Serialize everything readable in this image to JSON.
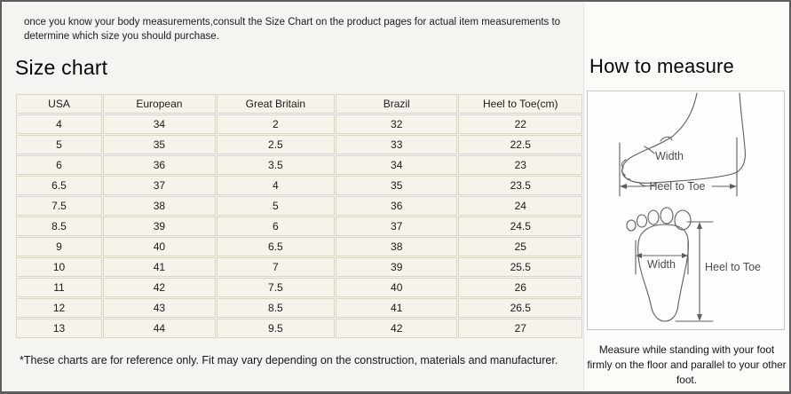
{
  "intro_text": "once you know your body measurements,consult the Size Chart on the product pages for actual item measurements to determine which size you should purchase.",
  "size_chart": {
    "title": "Size chart",
    "table": {
      "headers": [
        "USA",
        "European",
        "Great Britain",
        "Brazil",
        "Heel to Toe(cm)"
      ],
      "rows": [
        [
          "4",
          "34",
          "2",
          "32",
          "22"
        ],
        [
          "5",
          "35",
          "2.5",
          "33",
          "22.5"
        ],
        [
          "6",
          "36",
          "3.5",
          "34",
          "23"
        ],
        [
          "6.5",
          "37",
          "4",
          "35",
          "23.5"
        ],
        [
          "7.5",
          "38",
          "5",
          "36",
          "24"
        ],
        [
          "8.5",
          "39",
          "6",
          "37",
          "24.5"
        ],
        [
          "9",
          "40",
          "6.5",
          "38",
          "25"
        ],
        [
          "10",
          "41",
          "7",
          "39",
          "25.5"
        ],
        [
          "11",
          "42",
          "7.5",
          "40",
          "26"
        ],
        [
          "12",
          "43",
          "8.5",
          "41",
          "26.5"
        ],
        [
          "13",
          "44",
          "9.5",
          "42",
          "27"
        ]
      ]
    },
    "footnote": "*These charts are for reference only. Fit may vary depending on the construction, materials and manufacturer."
  },
  "how_to_measure": {
    "title": "How to measure",
    "side_view": {
      "width_label": "Width",
      "heel_to_toe_label": "Heel to Toe"
    },
    "bottom_view": {
      "width_label": "Width",
      "heel_to_toe_label": "Heel to Toe"
    },
    "instruction": "Measure while standing with your foot firmly on the floor and parallel to your other foot."
  },
  "colors": {
    "outer_border": "#5d5d5f",
    "left_bg": "#f4f4f1",
    "right_bg": "#fbfbf8",
    "cell_bg": "#f5f3ea",
    "cell_border": "#d9d6c6",
    "diagram_stroke": "#5e5e5e",
    "text": "#1a1a1a"
  }
}
